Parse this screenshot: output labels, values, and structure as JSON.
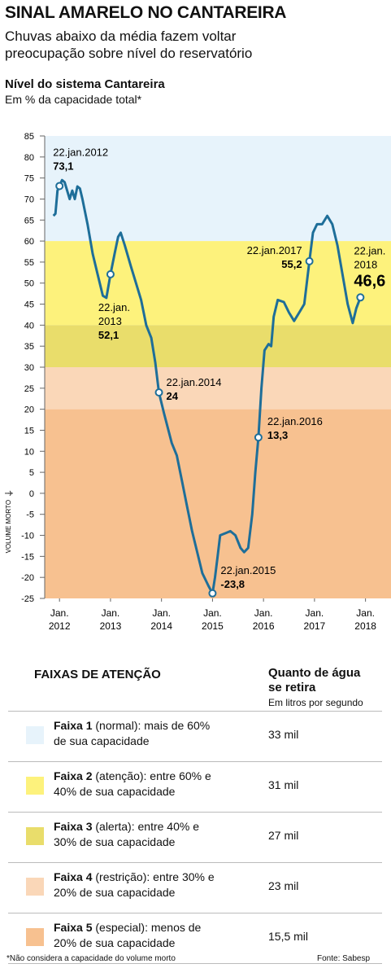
{
  "header": {
    "title": "SINAL AMARELO NO CANTAREIRA",
    "subtitle": "Chuvas abaixo da média fazem voltar preocupação sobre nível do reservatório"
  },
  "chart_data": {
    "type": "line",
    "title": "Nível do sistema Cantareira",
    "subtitle": "Em % da capacidade total*",
    "y_side_label": "VOLUME MORTO",
    "xlim": [
      2011.71,
      2018.5
    ],
    "ylim": [
      -25,
      85
    ],
    "yticks": [
      85,
      80,
      75,
      70,
      65,
      60,
      55,
      50,
      45,
      40,
      35,
      30,
      25,
      20,
      15,
      10,
      5,
      0,
      -5,
      -10,
      -15,
      -20,
      -25
    ],
    "xticks": [
      {
        "value": 2012,
        "label": "Jan. 2012"
      },
      {
        "value": 2013,
        "label": "Jan. 2013"
      },
      {
        "value": 2014,
        "label": "Jan. 2014"
      },
      {
        "value": 2015,
        "label": "Jan. 2015"
      },
      {
        "value": 2016,
        "label": "Jan. 2016"
      },
      {
        "value": 2017,
        "label": "Jan. 2017"
      },
      {
        "value": 2018,
        "label": "Jan. 2018"
      }
    ],
    "bands": [
      {
        "from": 60,
        "to": 85,
        "color": "#e7f3fb"
      },
      {
        "from": 40,
        "to": 60,
        "color": "#fdf27c"
      },
      {
        "from": 30,
        "to": 40,
        "color": "#e9dd6b"
      },
      {
        "from": 20,
        "to": 30,
        "color": "#fad7b8"
      },
      {
        "from": -25,
        "to": 20,
        "color": "#f7c190"
      }
    ],
    "series": [
      {
        "color": "#1e6e99",
        "x": [
          2011.88,
          2011.92,
          2011.96,
          2012.0,
          2012.05,
          2012.1,
          2012.15,
          2012.2,
          2012.25,
          2012.3,
          2012.35,
          2012.4,
          2012.45,
          2012.55,
          2012.65,
          2012.75,
          2012.85,
          2012.92,
          2013.0,
          2013.08,
          2013.15,
          2013.2,
          2013.28,
          2013.4,
          2013.5,
          2013.6,
          2013.7,
          2013.8,
          2013.88,
          2013.95,
          2014.05,
          2014.2,
          2014.3,
          2014.4,
          2014.5,
          2014.6,
          2014.7,
          2014.8,
          2014.92,
          2015.0,
          2015.05,
          2015.1,
          2015.15,
          2015.25,
          2015.35,
          2015.45,
          2015.55,
          2015.62,
          2015.7,
          2015.78,
          2015.84,
          2015.9,
          2015.96,
          2016.02,
          2016.1,
          2016.15,
          2016.2,
          2016.28,
          2016.4,
          2016.5,
          2016.6,
          2016.7,
          2016.8,
          2016.9,
          2016.97,
          2017.05,
          2017.15,
          2017.25,
          2017.35,
          2017.45,
          2017.55,
          2017.65,
          2017.75,
          2017.82,
          2017.9
        ],
        "values": [
          66,
          66.5,
          72,
          73.1,
          74.5,
          74,
          72,
          70,
          72,
          70,
          73,
          72.5,
          70,
          64,
          57,
          52,
          47,
          46.5,
          52.1,
          57,
          61,
          62,
          59,
          54,
          50,
          46,
          40,
          37,
          31,
          24,
          19,
          12,
          9,
          3,
          -3,
          -9,
          -14,
          -19,
          -22,
          -23.8,
          -20,
          -15,
          -10,
          -9.5,
          -9,
          -10,
          -13,
          -14,
          -13,
          -5,
          5,
          13.3,
          25,
          34,
          35.5,
          35,
          42,
          46,
          45.5,
          43,
          41,
          43,
          45,
          55.2,
          62,
          64,
          64,
          66,
          64,
          59,
          52,
          45,
          40.5,
          44,
          46.6
        ]
      }
    ],
    "points": {
      "dates": [
        "22.jan.2012",
        "22.jan.2013",
        "22.jan.2014",
        "22.jan.2015",
        "22.jan.2016",
        "22.jan.2017",
        "22.jan.2018"
      ],
      "x": [
        2012.0,
        2013.0,
        2013.95,
        2015.0,
        2015.9,
        2016.9,
        2017.9
      ],
      "values": [
        73.1,
        52.1,
        24,
        -23.8,
        13.3,
        55.2,
        46.6
      ],
      "value_labels": [
        "73,1",
        "52,1",
        "24",
        "-23,8",
        "13,3",
        "55,2",
        "46,6"
      ]
    }
  },
  "legend_table": {
    "title": "FAIXAS DE ATENÇÃO",
    "value_header": "Quanto de água se retira",
    "value_subheader": "Em litros por segundo",
    "rows": [
      {
        "name": "Faixa 1",
        "desc": "(normal): mais de 60% de sua capacidade",
        "value": "33 mil"
      },
      {
        "name": "Faixa 2",
        "desc": "(atenção): entre 60% e 40% de sua capacidade",
        "value": "31 mil"
      },
      {
        "name": "Faixa 3",
        "desc": "(alerta): entre 40% e 30% de sua capacidade",
        "value": "27 mil"
      },
      {
        "name": "Faixa 4",
        "desc": "(restrição): entre 30% e 20% de sua capacidade",
        "value": "23 mil"
      },
      {
        "name": "Faixa 5",
        "desc": "(especial): menos de 20% de sua capacidade",
        "value": "15,5 mil"
      }
    ]
  },
  "footer": {
    "note": "*Não considera a capacidade do volume morto",
    "source": "Fonte: Sabesp"
  }
}
